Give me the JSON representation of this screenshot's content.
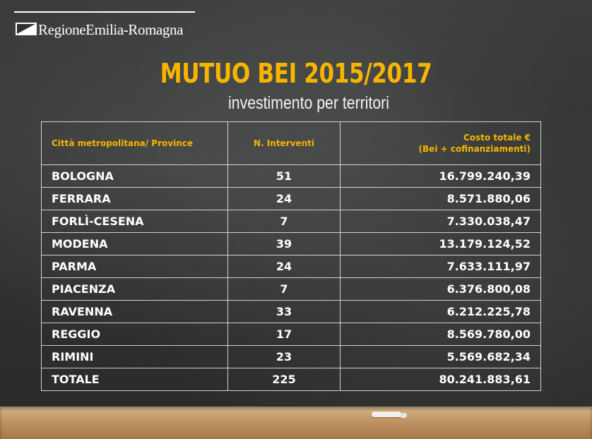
{
  "logo": {
    "text": "RegioneEmilia-Romagna"
  },
  "title": "MUTUO BEI 2015/2017",
  "subtitle": "investimento per territori",
  "table": {
    "headers": {
      "col1": "Città metropolitana/ Province",
      "col2": "N. Interventi",
      "col3_line1": "Costo totale €",
      "col3_line2": "(Bei + cofinanziamenti)"
    },
    "rows": [
      {
        "name": "BOLOGNA",
        "count": "51",
        "cost": "16.799.240,39"
      },
      {
        "name": "FERRARA",
        "count": "24",
        "cost": "8.571.880,06"
      },
      {
        "name": "FORLÌ-CESENA",
        "count": "7",
        "cost": "7.330.038,47"
      },
      {
        "name": "MODENA",
        "count": "39",
        "cost": "13.179.124,52"
      },
      {
        "name": "PARMA",
        "count": "24",
        "cost": "7.633.111,97"
      },
      {
        "name": "PIACENZA",
        "count": "7",
        "cost": "6.376.800,08"
      },
      {
        "name": "RAVENNA",
        "count": "33",
        "cost": "6.212.225,78"
      },
      {
        "name": "REGGIO",
        "count": "17",
        "cost": "8.569.780,00"
      },
      {
        "name": "RIMINI",
        "count": "23",
        "cost": "5.569.682,34"
      },
      {
        "name": "TOTALE",
        "count": "225",
        "cost": "80.241.883,61"
      }
    ]
  },
  "colors": {
    "accent": "#f7b500",
    "board": "#333534",
    "text": "#ffffff"
  }
}
